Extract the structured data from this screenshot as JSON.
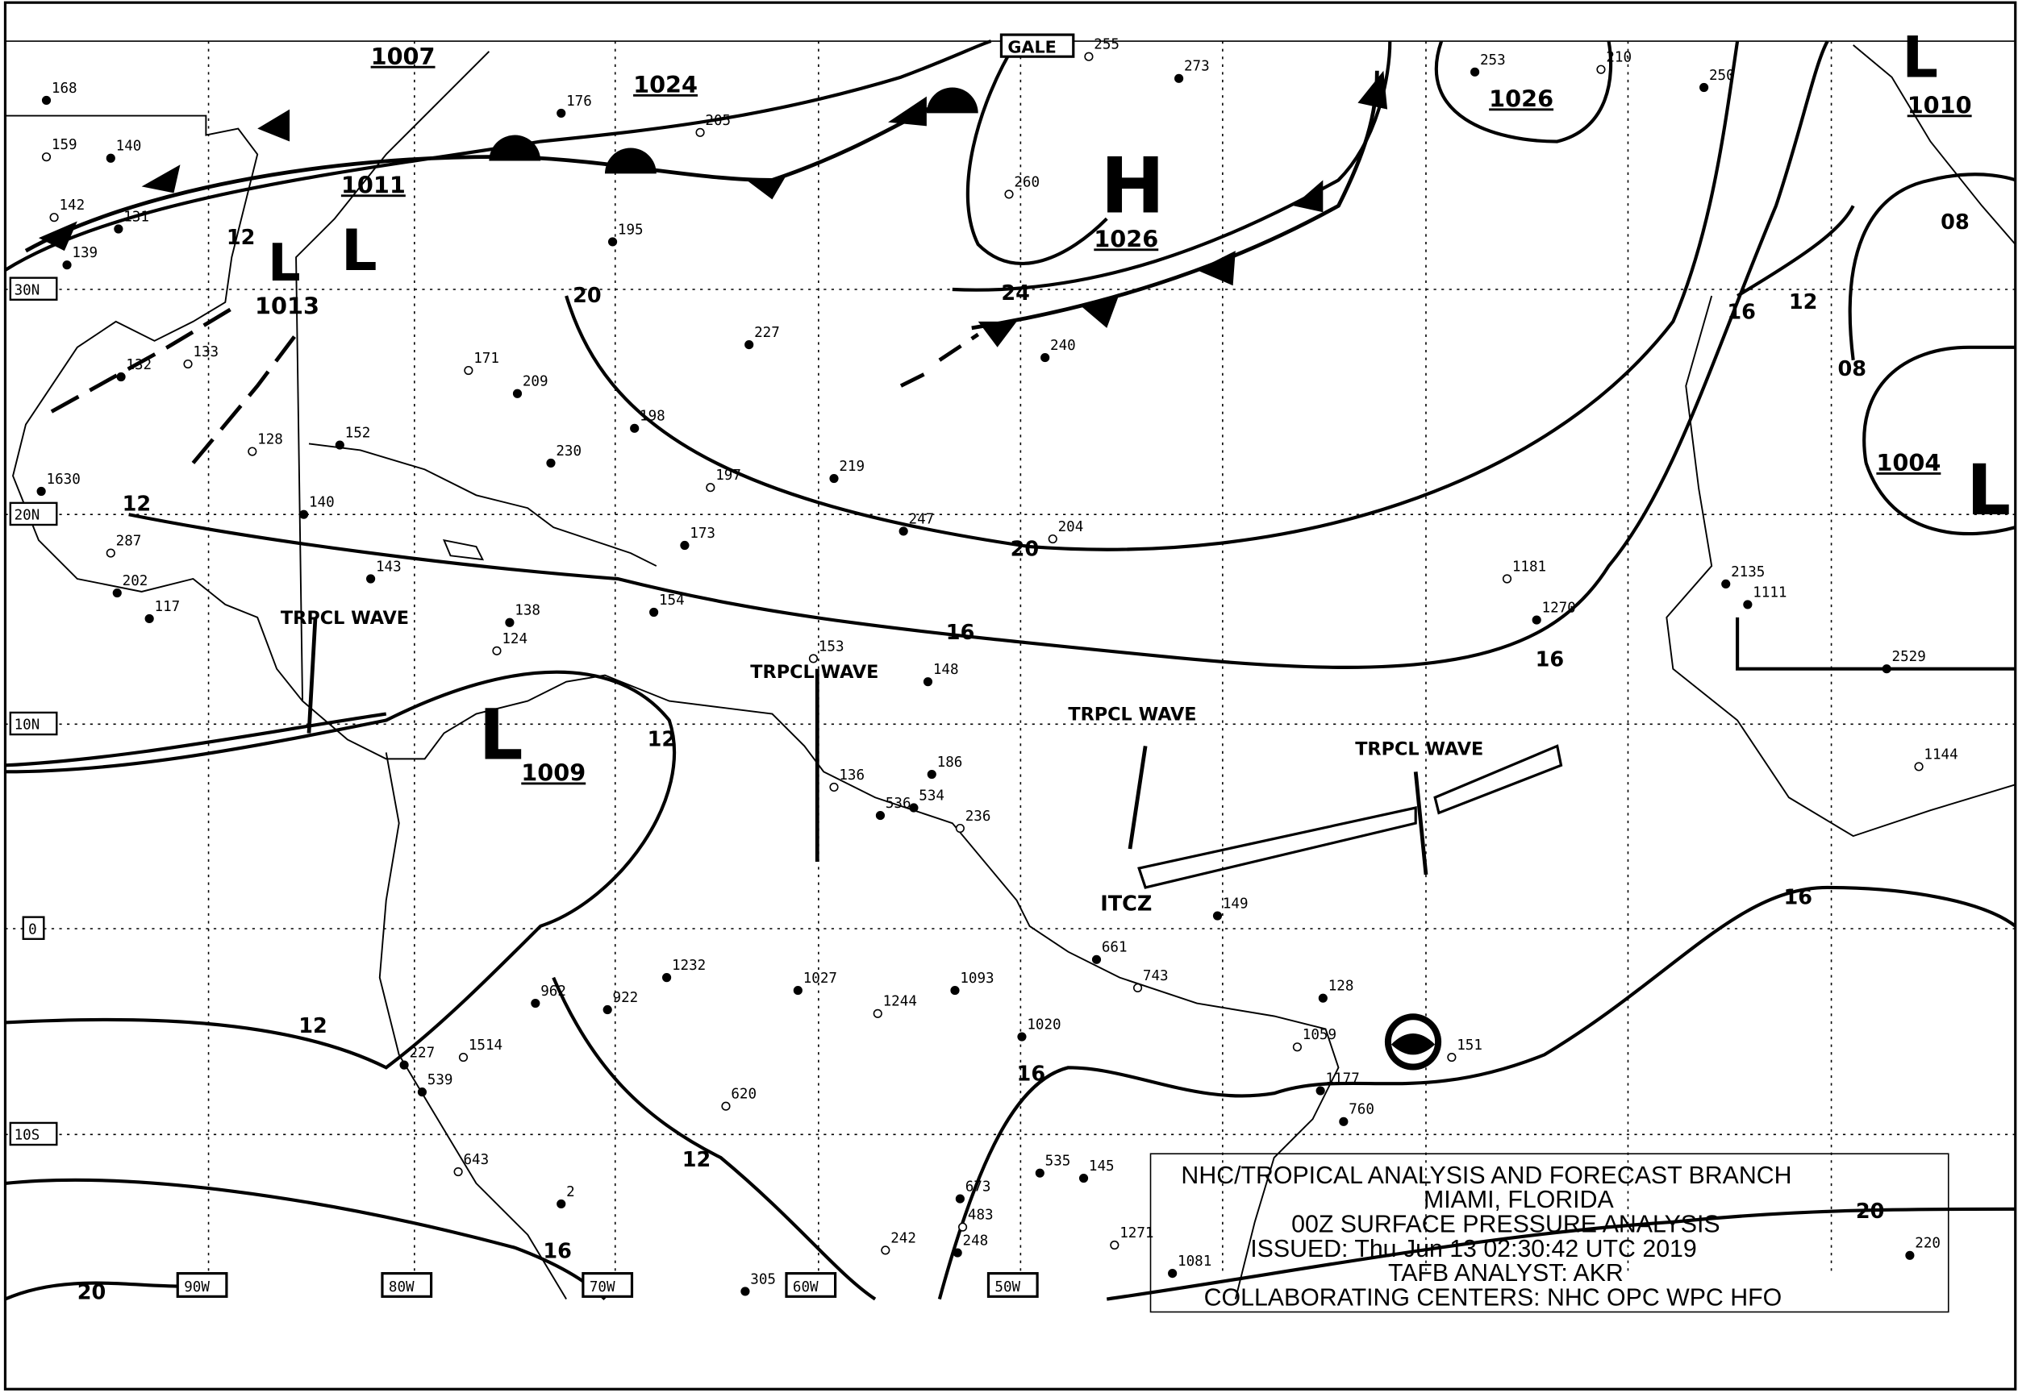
{
  "title_box": {
    "lines": [
      "NHC/TROPICAL ANALYSIS AND FORECAST BRANCH",
      "MIAMI, FLORIDA",
      "00Z SURFACE PRESSURE ANALYSIS",
      "ISSUED: Thu Jun 13 02:30:42 UTC 2019",
      "TAFB ANALYST: AKR",
      "COLLABORATING CENTERS: NHC OPC WPC HFO"
    ]
  },
  "longitude_labels": [
    "90W",
    "80W",
    "70W",
    "60W",
    "50W"
  ],
  "latitude_labels": [
    "30N",
    "20N",
    "10N",
    "0",
    "10S"
  ],
  "pressure_centers": [
    {
      "type": "H",
      "value": "1026"
    },
    {
      "type": "L",
      "value": "1011"
    },
    {
      "type": "L",
      "value": "1009"
    },
    {
      "type": "L",
      "value": "1004"
    },
    {
      "type": "L",
      "value": "1010"
    },
    {
      "type": "L",
      "value": "1013"
    }
  ],
  "pressure_labels": [
    "1007",
    "1024",
    "1026"
  ],
  "warning_box": "GALE",
  "isobar_labels": [
    "20",
    "24",
    "20",
    "16",
    "16",
    "12",
    "12",
    "16",
    "12",
    "16",
    "20",
    "20",
    "16",
    "12",
    "08",
    "08",
    "12",
    "16",
    "12"
  ],
  "features": [
    "TRPCL WAVE",
    "TRPCL WAVE",
    "TRPCL WAVE",
    "TRPCL WAVE",
    "ITCZ"
  ],
  "station_values": [
    "255",
    "273",
    "253",
    "210",
    "250",
    "176",
    "205",
    "195",
    "227",
    "260",
    "240",
    "198",
    "197",
    "219",
    "247",
    "204",
    "230",
    "209",
    "171",
    "152",
    "140",
    "128",
    "143",
    "138",
    "124",
    "154",
    "173",
    "153",
    "148",
    "186",
    "136",
    "536",
    "534",
    "236",
    "149",
    "128",
    "151",
    "1232",
    "1027",
    "1244",
    "1093",
    "1020",
    "620",
    "962",
    "922",
    "1514",
    "539",
    "227",
    "643",
    "2",
    "305",
    "242",
    "248",
    "673",
    "483",
    "535",
    "145",
    "1271",
    "1081",
    "220",
    "1181",
    "1270",
    "2529",
    "1144",
    "2135",
    "1111",
    "1059",
    "1177",
    "760",
    "743",
    "661",
    "1630",
    "287",
    "202",
    "117",
    "133",
    "132",
    "139",
    "142",
    "131",
    "140",
    "159",
    "168"
  ]
}
